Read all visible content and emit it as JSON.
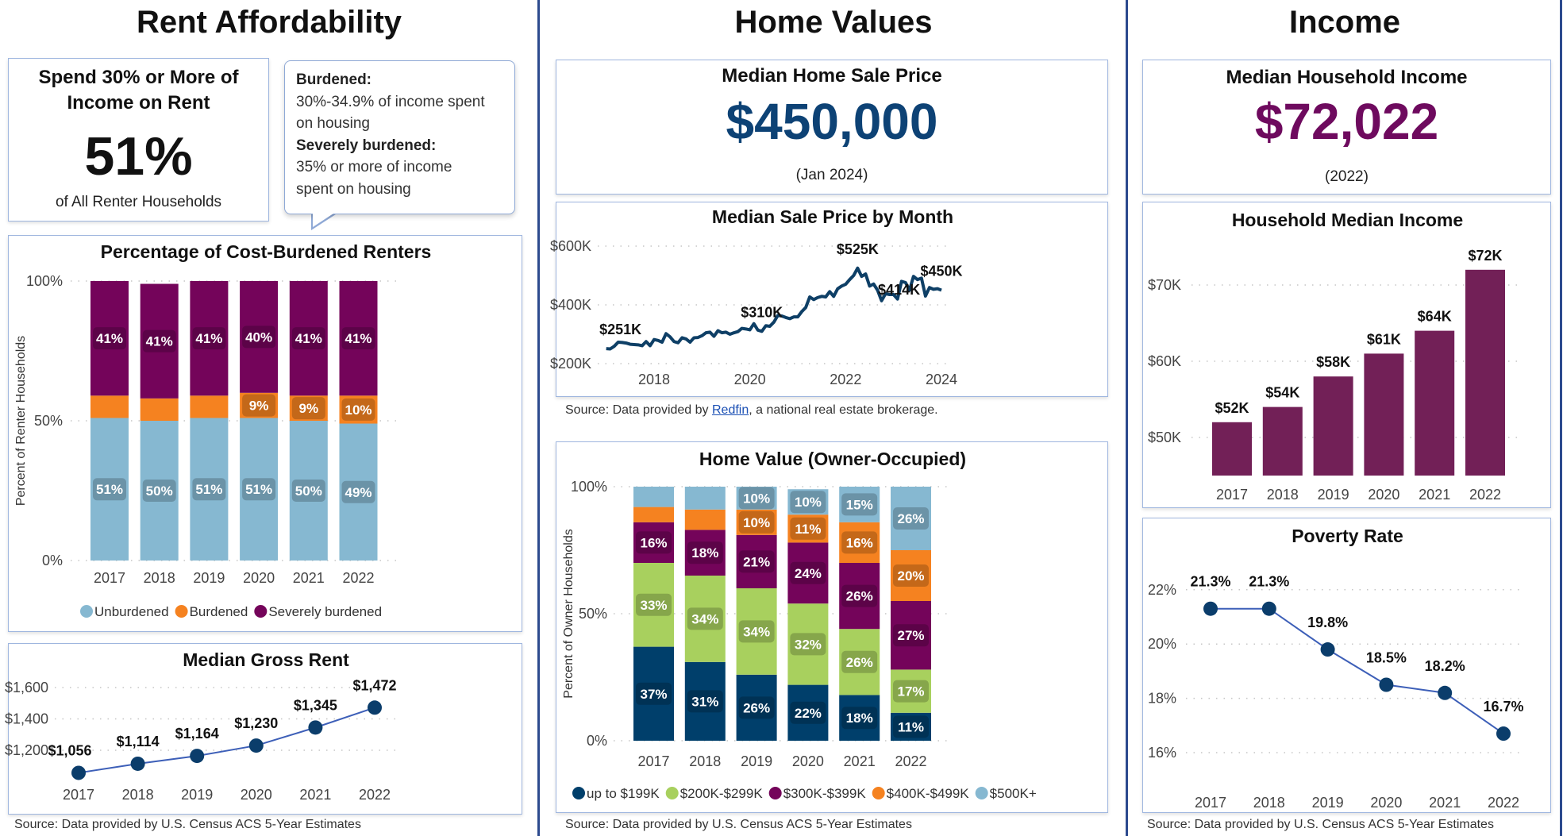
{
  "sections": {
    "rent": {
      "title": "Rent Affordability"
    },
    "home": {
      "title": "Home Values"
    },
    "income": {
      "title": "Income"
    }
  },
  "rent_kpi": {
    "title_line1": "Spend 30% or More of",
    "title_line2": "Income on Rent",
    "value": "51%",
    "caption": "of All Renter Households"
  },
  "callout": {
    "burdened_label": "Burdened:",
    "burdened_line1": "30%-34.9% of income spent",
    "burdened_line2": "on housing",
    "severe_label": "Severely burdened:",
    "severe_line1": "35% or more of income",
    "severe_line2": "spent on housing"
  },
  "home_kpi": {
    "title": "Median Home Sale Price",
    "value": "$450,000",
    "period": "(Jan 2024)",
    "color": "#0d4275"
  },
  "income_kpi": {
    "title": "Median Household Income",
    "value": "$72,022",
    "period": "(2022)",
    "color": "#6e0a5e"
  },
  "sources": {
    "rent": "Source: Data provided by U.S. Census ACS 5-Year Estimates",
    "redfin_prefix": "Source: Data provided by ",
    "redfin_link": "Redfin",
    "redfin_suffix": ", a national real estate brokerage.",
    "home_value": "Source: Data provided by U.S. Census ACS 5-Year Estimates",
    "income": "Source: Data provided by U.S. Census ACS 5-Year Estimates"
  },
  "chart_data": [
    {
      "type": "bar",
      "stacked": true,
      "title": "Percentage of Cost-Burdened Renters",
      "ylabel": "Percent of Renter Households",
      "categories": [
        "2017",
        "2018",
        "2019",
        "2020",
        "2021",
        "2022"
      ],
      "ylim": [
        0,
        100
      ],
      "yticks": [
        0,
        50,
        100
      ],
      "ytick_labels": [
        "0%",
        "50%",
        "100%"
      ],
      "grid": true,
      "legend": "bottom",
      "series": [
        {
          "name": "Unburdened",
          "color": "#86b8d1",
          "values": [
            51,
            50,
            51,
            51,
            50,
            49
          ]
        },
        {
          "name": "Burdened",
          "color": "#f58220",
          "values": [
            8,
            8,
            8,
            9,
            9,
            10
          ]
        },
        {
          "name": "Severely burdened",
          "color": "#74045a",
          "values": [
            41,
            41,
            41,
            40,
            41,
            41
          ]
        }
      ]
    },
    {
      "type": "line",
      "title": "Median Gross Rent",
      "categories": [
        "2017",
        "2018",
        "2019",
        "2020",
        "2021",
        "2022"
      ],
      "values": [
        1056,
        1114,
        1164,
        1230,
        1345,
        1472
      ],
      "labels": [
        "$1,056",
        "$1,114",
        "$1,164",
        "$1,230",
        "$1,345",
        "$1,472"
      ],
      "ylim": [
        1000,
        1650
      ],
      "yticks": [
        1200,
        1400,
        1600
      ],
      "ytick_labels": [
        "$1,200",
        "$1,400",
        "$1,600"
      ],
      "grid": true,
      "line_color": "#3d5fb8",
      "marker_color": "#0b3d6b"
    },
    {
      "type": "line",
      "title": "Median Sale Price by Month",
      "x": [
        "2017-01",
        "2017-02",
        "2017-03",
        "2017-04",
        "2017-05",
        "2017-06",
        "2017-07",
        "2017-08",
        "2017-09",
        "2017-10",
        "2017-11",
        "2017-12",
        "2018-01",
        "2018-02",
        "2018-03",
        "2018-04",
        "2018-05",
        "2018-06",
        "2018-07",
        "2018-08",
        "2018-09",
        "2018-10",
        "2018-11",
        "2018-12",
        "2019-01",
        "2019-02",
        "2019-03",
        "2019-04",
        "2019-05",
        "2019-06",
        "2019-07",
        "2019-08",
        "2019-09",
        "2019-10",
        "2019-11",
        "2019-12",
        "2020-01",
        "2020-02",
        "2020-03",
        "2020-04",
        "2020-05",
        "2020-06",
        "2020-07",
        "2020-08",
        "2020-09",
        "2020-10",
        "2020-11",
        "2020-12",
        "2021-01",
        "2021-02",
        "2021-03",
        "2021-04",
        "2021-05",
        "2021-06",
        "2021-07",
        "2021-08",
        "2021-09",
        "2021-10",
        "2021-11",
        "2021-12",
        "2022-01",
        "2022-02",
        "2022-03",
        "2022-04",
        "2022-05",
        "2022-06",
        "2022-07",
        "2022-08",
        "2022-09",
        "2022-10",
        "2022-11",
        "2022-12",
        "2023-01",
        "2023-02",
        "2023-03",
        "2023-04",
        "2023-05",
        "2023-06",
        "2023-07",
        "2023-08",
        "2023-09",
        "2023-10",
        "2023-11",
        "2023-12",
        "2024-01"
      ],
      "y_unit": "$K",
      "values": [
        251,
        250,
        259,
        273,
        272,
        270,
        266,
        265,
        264,
        261,
        275,
        261,
        282,
        279,
        273,
        302,
        291,
        275,
        271,
        288,
        284,
        273,
        288,
        289,
        295,
        305,
        307,
        293,
        312,
        305,
        307,
        300,
        305,
        309,
        320,
        318,
        315,
        336,
        314,
        310,
        329,
        327,
        341,
        364,
        362,
        357,
        353,
        359,
        359,
        377,
        391,
        427,
        418,
        425,
        429,
        427,
        445,
        429,
        455,
        464,
        470,
        486,
        500,
        525,
        497,
        505,
        464,
        471,
        450,
        414,
        438,
        435,
        435,
        420,
        480,
        476,
        450,
        497,
        486,
        491,
        430,
        459,
        453,
        455,
        450
      ],
      "point_labels": [
        {
          "x": "2017-01",
          "label": "$251K"
        },
        {
          "x": "2020-04",
          "label": "$310K"
        },
        {
          "x": "2022-04",
          "label": "$525K"
        },
        {
          "x": "2022-10",
          "label": "$414K"
        },
        {
          "x": "2024-01",
          "label": "$450K"
        }
      ],
      "ylim": [
        180,
        620
      ],
      "yticks": [
        200,
        400,
        600
      ],
      "ytick_labels": [
        "$200K",
        "$400K",
        "$600K"
      ],
      "xticks": [
        2018,
        2020,
        2022,
        2024
      ],
      "xtick_labels": [
        "2018",
        "2020",
        "2022",
        "2024"
      ],
      "grid": true,
      "line_color": "#0e3f66"
    },
    {
      "type": "bar",
      "stacked": true,
      "title": "Home Value (Owner-Occupied)",
      "ylabel": "Percent of Owner Households",
      "categories": [
        "2017",
        "2018",
        "2019",
        "2020",
        "2021",
        "2022"
      ],
      "ylim": [
        0,
        100
      ],
      "yticks": [
        0,
        50,
        100
      ],
      "ytick_labels": [
        "0%",
        "50%",
        "100%"
      ],
      "grid": true,
      "legend": "bottom",
      "series": [
        {
          "name": "up to $199K",
          "color": "#003f6b",
          "values": [
            37,
            31,
            26,
            22,
            18,
            11
          ]
        },
        {
          "name": "$200K-$299K",
          "color": "#a8d05e",
          "values": [
            33,
            34,
            34,
            32,
            26,
            17
          ]
        },
        {
          "name": "$300K-$399K",
          "color": "#74045a",
          "values": [
            16,
            18,
            21,
            24,
            26,
            27
          ]
        },
        {
          "name": "$400K-$499K",
          "color": "#f58220",
          "values": [
            6,
            8,
            10,
            11,
            16,
            20
          ]
        },
        {
          "name": "$500K+",
          "color": "#86b8d1",
          "values": [
            8,
            9,
            10,
            10,
            15,
            26
          ]
        }
      ]
    },
    {
      "type": "bar",
      "title": "Household Median Income",
      "categories": [
        "2017",
        "2018",
        "2019",
        "2020",
        "2021",
        "2022"
      ],
      "y_unit": "$K",
      "values": [
        52,
        54,
        58,
        61,
        64,
        72
      ],
      "labels": [
        "$52K",
        "$54K",
        "$58K",
        "$61K",
        "$64K",
        "$72K"
      ],
      "ylim": [
        45,
        77
      ],
      "yticks": [
        50,
        60,
        70
      ],
      "ytick_labels": [
        "$50K",
        "$60K",
        "$70K"
      ],
      "grid": true,
      "bar_color": "#722057"
    },
    {
      "type": "line",
      "title": "Poverty Rate",
      "categories": [
        "2017",
        "2018",
        "2019",
        "2020",
        "2021",
        "2022"
      ],
      "values": [
        21.3,
        21.3,
        19.8,
        18.5,
        18.2,
        16.7
      ],
      "labels": [
        "21.3%",
        "21.3%",
        "19.8%",
        "18.5%",
        "18.2%",
        "16.7%"
      ],
      "ylim": [
        15,
        23
      ],
      "yticks": [
        16,
        18,
        20,
        22
      ],
      "ytick_labels": [
        "16%",
        "18%",
        "20%",
        "22%"
      ],
      "grid": true,
      "line_color": "#3d5fb8",
      "marker_color": "#0b3d6b"
    }
  ]
}
